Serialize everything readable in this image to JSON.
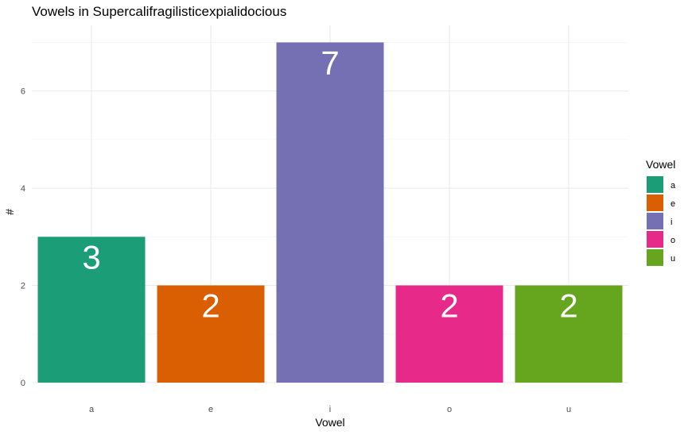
{
  "chart_data": {
    "type": "bar",
    "title": "Vowels in Supercalifragilisticexpialidocious",
    "xlabel": "Vowel",
    "ylabel": "#",
    "categories": [
      "a",
      "e",
      "i",
      "o",
      "u"
    ],
    "values": [
      3,
      2,
      7,
      2,
      2
    ],
    "data_labels": [
      "3",
      "2",
      "7",
      "2",
      "2"
    ],
    "colors": [
      "#1b9e77",
      "#d95f02",
      "#7570b3",
      "#e7298a",
      "#66a61e"
    ],
    "ylim": [
      0,
      7.35
    ],
    "yticks": [
      0,
      2,
      4,
      6
    ],
    "grid": true,
    "legend": {
      "title": "Vowel",
      "position": "right",
      "entries": [
        "a",
        "e",
        "i",
        "o",
        "u"
      ]
    }
  }
}
